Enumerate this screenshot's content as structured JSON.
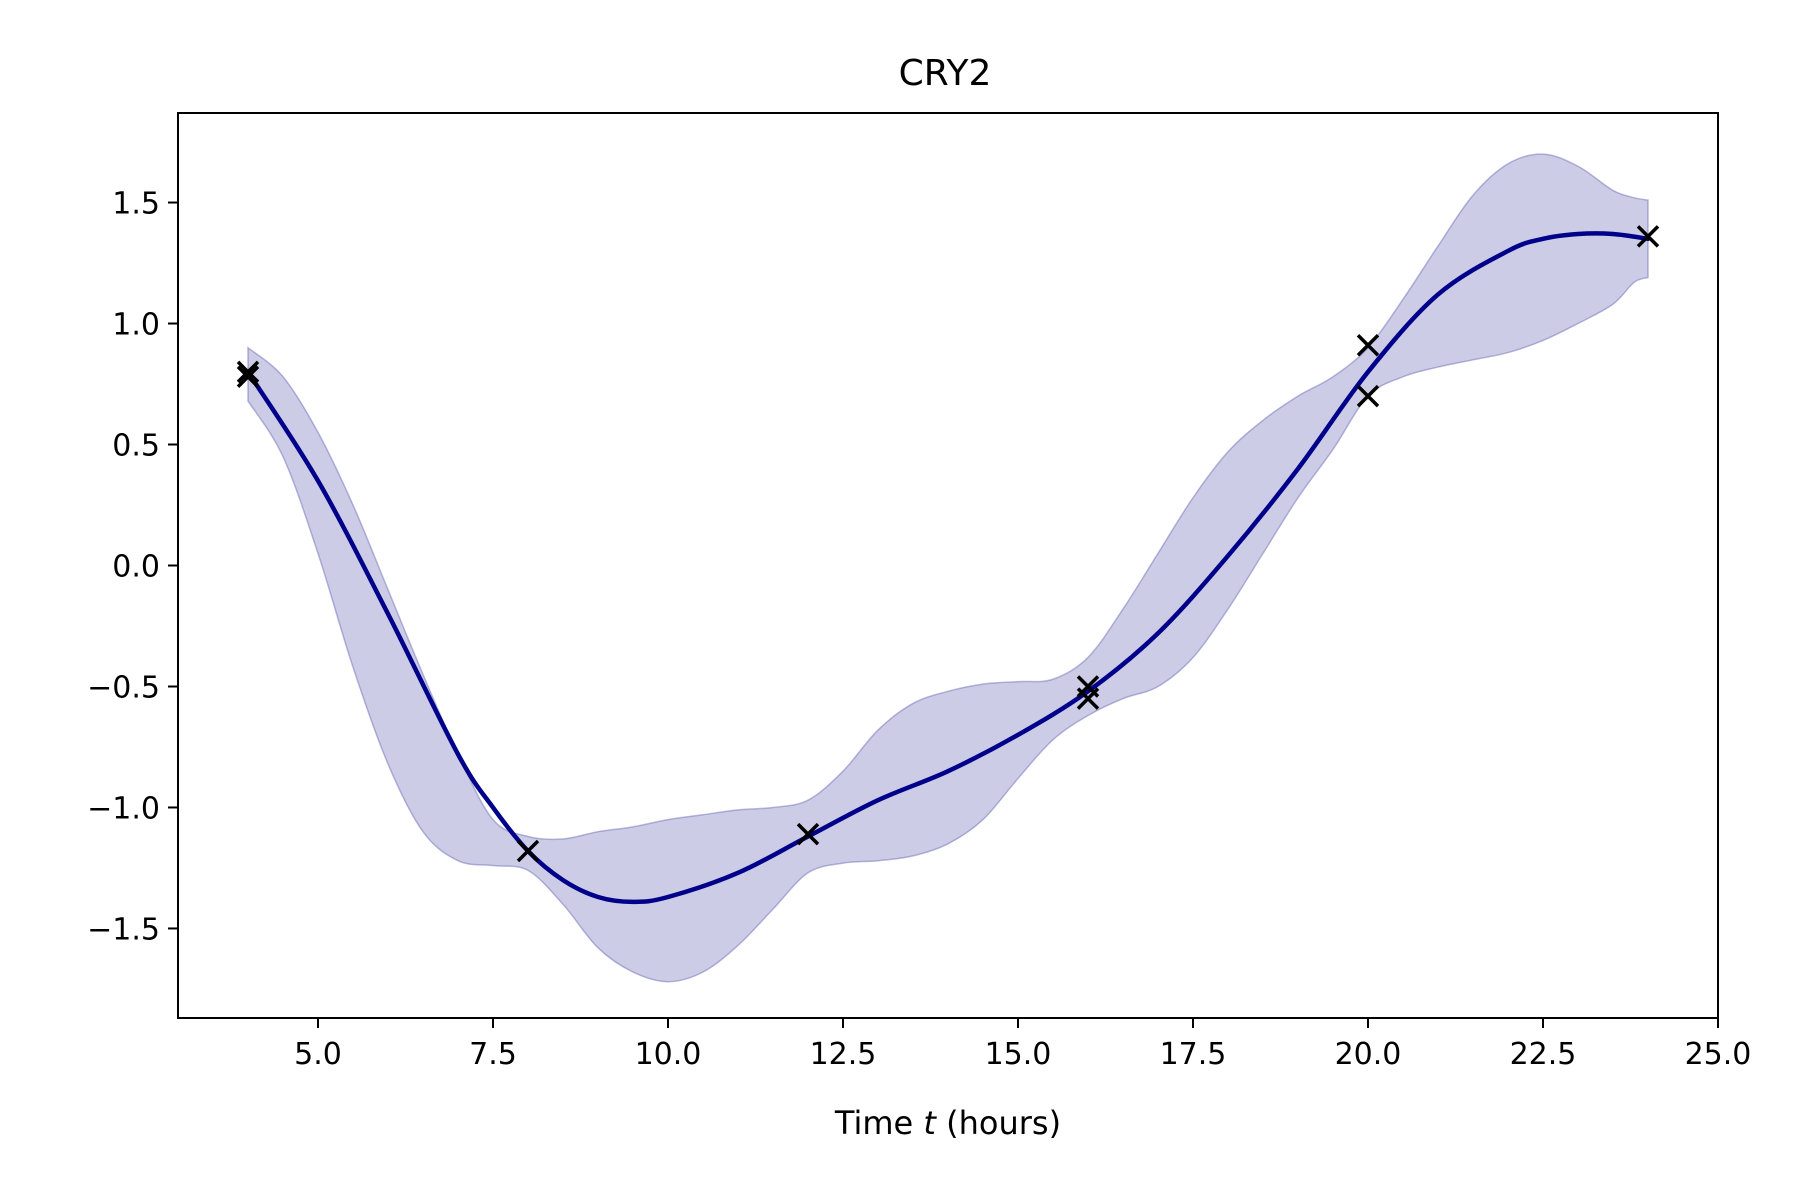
{
  "chart_data": {
    "type": "line",
    "title": "CRY2",
    "xlabel": {
      "prefix": "Time ",
      "variable": "t",
      "suffix": " (hours)"
    },
    "ylabel": "",
    "xlim": [
      3.0,
      25.0
    ],
    "ylim": [
      -1.87,
      1.87
    ],
    "x_ticks": [
      5.0,
      7.5,
      10.0,
      12.5,
      15.0,
      17.5,
      20.0,
      22.5,
      25.0
    ],
    "x_tick_labels": [
      "5.0",
      "7.5",
      "10.0",
      "12.5",
      "15.0",
      "17.5",
      "20.0",
      "22.5",
      "25.0"
    ],
    "y_ticks": [
      -1.5,
      -1.0,
      -0.5,
      0.0,
      0.5,
      1.0,
      1.5
    ],
    "y_tick_labels": [
      "−1.5",
      "−1.0",
      "−0.5",
      "0.0",
      "0.5",
      "1.0",
      "1.5"
    ],
    "grid": false,
    "legend": "none",
    "colors": {
      "mean_line": "#00008b",
      "band_fill": "#6464b4",
      "band_opacity": 0.33,
      "markers": "#000000"
    },
    "mean_curve": {
      "x": [
        4,
        5,
        6,
        7,
        7.5,
        8,
        8.5,
        9,
        9.5,
        10,
        11,
        12,
        13,
        14,
        15,
        16,
        17,
        18,
        19,
        20,
        21,
        22,
        22.5,
        23,
        23.5,
        24
      ],
      "y": [
        0.8,
        0.35,
        -0.2,
        -0.78,
        -1.0,
        -1.18,
        -1.3,
        -1.37,
        -1.39,
        -1.37,
        -1.27,
        -1.12,
        -0.97,
        -0.85,
        -0.7,
        -0.52,
        -0.28,
        0.04,
        0.4,
        0.8,
        1.12,
        1.3,
        1.35,
        1.37,
        1.37,
        1.35
      ]
    },
    "confidence_band": {
      "x": [
        4,
        4.5,
        5,
        5.5,
        6,
        6.5,
        7,
        7.5,
        8,
        8.5,
        9,
        9.5,
        10,
        10.5,
        11,
        11.5,
        12,
        12.5,
        13,
        13.5,
        14,
        14.5,
        15,
        15.5,
        16,
        16.5,
        17,
        17.5,
        18,
        18.5,
        19,
        19.5,
        20,
        20.5,
        21,
        21.5,
        22,
        22.5,
        23,
        23.5,
        23.8,
        24
      ],
      "upper": [
        0.9,
        0.78,
        0.55,
        0.25,
        -0.1,
        -0.45,
        -0.78,
        -1.05,
        -1.12,
        -1.13,
        -1.1,
        -1.08,
        -1.05,
        -1.03,
        -1.01,
        -1.0,
        -0.97,
        -0.85,
        -0.68,
        -0.57,
        -0.52,
        -0.49,
        -0.48,
        -0.47,
        -0.38,
        -0.18,
        0.05,
        0.28,
        0.47,
        0.6,
        0.7,
        0.78,
        0.9,
        1.1,
        1.32,
        1.53,
        1.66,
        1.7,
        1.65,
        1.55,
        1.52,
        1.51
      ],
      "lower": [
        0.68,
        0.45,
        0.05,
        -0.42,
        -0.82,
        -1.1,
        -1.22,
        -1.24,
        -1.26,
        -1.4,
        -1.58,
        -1.68,
        -1.72,
        -1.68,
        -1.57,
        -1.42,
        -1.27,
        -1.23,
        -1.22,
        -1.2,
        -1.15,
        -1.05,
        -0.88,
        -0.72,
        -0.62,
        -0.55,
        -0.5,
        -0.38,
        -0.18,
        0.05,
        0.28,
        0.48,
        0.7,
        0.78,
        0.82,
        0.85,
        0.88,
        0.93,
        1.0,
        1.08,
        1.17,
        1.19
      ]
    },
    "observations": {
      "x": [
        4.0,
        4.0,
        8.0,
        12.0,
        16.0,
        16.0,
        20.0,
        20.0,
        24.0
      ],
      "y": [
        0.8,
        0.78,
        -1.18,
        -1.11,
        -0.5,
        -0.55,
        0.91,
        0.7,
        1.36
      ]
    }
  }
}
